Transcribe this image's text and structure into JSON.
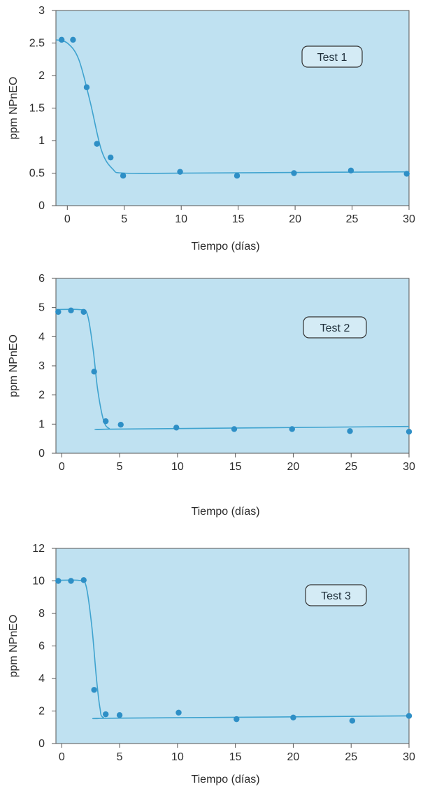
{
  "colors": {
    "plot_bg": "#bfe1f1",
    "frame": "#555555",
    "curve": "#3fa3cf",
    "point": "#2e8fc6",
    "badge_bg": "#d4ebf5",
    "badge_border": "#333333"
  },
  "chart_data": [
    {
      "type": "scatter",
      "title": "",
      "annotation": "Test 1",
      "annotation_placement": "top-right",
      "xlabel": "Tiempo (días)",
      "ylabel": "ppm NPnEO",
      "xlim": [
        -1,
        30
      ],
      "ylim": [
        0,
        3
      ],
      "xticks": [
        0,
        5,
        10,
        15,
        20,
        25,
        30
      ],
      "yticks": [
        0,
        0.5,
        1,
        1.5,
        2,
        2.5,
        3
      ],
      "ytick_labels": [
        "0",
        "0.5",
        "1",
        "1.5",
        "2",
        "2.5",
        "3"
      ],
      "grid": false,
      "points": [
        {
          "x": -0.5,
          "y": 2.55
        },
        {
          "x": 0.5,
          "y": 2.55
        },
        {
          "x": 1.7,
          "y": 1.82
        },
        {
          "x": 2.6,
          "y": 0.95
        },
        {
          "x": 3.8,
          "y": 0.74
        },
        {
          "x": 4.9,
          "y": 0.46
        },
        {
          "x": 9.9,
          "y": 0.52
        },
        {
          "x": 14.9,
          "y": 0.46
        },
        {
          "x": 19.9,
          "y": 0.5
        },
        {
          "x": 24.9,
          "y": 0.54
        },
        {
          "x": 29.8,
          "y": 0.49
        }
      ],
      "fit_curve": [
        {
          "x": -1,
          "y": 2.55
        },
        {
          "x": 0,
          "y": 2.5
        },
        {
          "x": 1,
          "y": 2.25
        },
        {
          "x": 2,
          "y": 1.6
        },
        {
          "x": 3,
          "y": 0.85
        },
        {
          "x": 4,
          "y": 0.56
        },
        {
          "x": 5,
          "y": 0.5
        },
        {
          "x": 10,
          "y": 0.5
        },
        {
          "x": 20,
          "y": 0.51
        },
        {
          "x": 30,
          "y": 0.52
        }
      ]
    },
    {
      "type": "scatter",
      "title": "",
      "annotation": "Test 2",
      "annotation_placement": "top-right",
      "xlabel": "Tiempo (días)",
      "ylabel": "ppm NPnEO",
      "xlim": [
        -0.5,
        30
      ],
      "ylim": [
        0,
        6
      ],
      "xticks": [
        0,
        5,
        10,
        15,
        20,
        25,
        30
      ],
      "yticks": [
        0,
        1,
        2,
        3,
        4,
        5,
        6
      ],
      "ytick_labels": [
        "0",
        "1",
        "2",
        "3",
        "4",
        "5",
        "6"
      ],
      "grid": false,
      "points": [
        {
          "x": -0.3,
          "y": 4.85
        },
        {
          "x": 0.8,
          "y": 4.9
        },
        {
          "x": 1.9,
          "y": 4.85
        },
        {
          "x": 2.8,
          "y": 2.8
        },
        {
          "x": 3.8,
          "y": 1.1
        },
        {
          "x": 5.1,
          "y": 0.98
        },
        {
          "x": 9.9,
          "y": 0.88
        },
        {
          "x": 14.9,
          "y": 0.83
        },
        {
          "x": 19.9,
          "y": 0.83
        },
        {
          "x": 24.9,
          "y": 0.76
        },
        {
          "x": 30,
          "y": 0.74
        }
      ],
      "fit_curve": [
        {
          "x": -0.5,
          "y": 4.93
        },
        {
          "x": 1.5,
          "y": 4.93
        },
        {
          "x": 2.2,
          "y": 4.78
        },
        {
          "x": 2.7,
          "y": 3.6
        },
        {
          "x": 3.1,
          "y": 2.2
        },
        {
          "x": 3.6,
          "y": 1.15
        },
        {
          "x": 4.1,
          "y": 0.85
        },
        {
          "x": 5,
          "y": 0.83
        },
        {
          "x": 30,
          "y": 0.92
        }
      ]
    },
    {
      "type": "scatter",
      "title": "",
      "annotation": "Test 3",
      "annotation_placement": "top-right",
      "xlabel": "Tiempo (días)",
      "ylabel": "ppm NPnEO",
      "xlim": [
        -0.5,
        30
      ],
      "ylim": [
        0,
        12
      ],
      "xticks": [
        0,
        5,
        10,
        15,
        20,
        25,
        30
      ],
      "yticks": [
        0,
        2,
        4,
        6,
        8,
        10,
        12
      ],
      "ytick_labels": [
        "0",
        "2",
        "4",
        "6",
        "8",
        "10",
        "12"
      ],
      "grid": false,
      "points": [
        {
          "x": -0.3,
          "y": 10
        },
        {
          "x": 0.8,
          "y": 10
        },
        {
          "x": 1.9,
          "y": 10.05
        },
        {
          "x": 2.8,
          "y": 3.3
        },
        {
          "x": 3.8,
          "y": 1.8
        },
        {
          "x": 5,
          "y": 1.75
        },
        {
          "x": 10.1,
          "y": 1.9
        },
        {
          "x": 15.1,
          "y": 1.5
        },
        {
          "x": 20,
          "y": 1.6
        },
        {
          "x": 25.1,
          "y": 1.4
        },
        {
          "x": 30,
          "y": 1.7
        }
      ],
      "fit_curve": [
        {
          "x": -0.5,
          "y": 10.03
        },
        {
          "x": 1.5,
          "y": 10.03
        },
        {
          "x": 2.1,
          "y": 9.7
        },
        {
          "x": 2.6,
          "y": 7.2
        },
        {
          "x": 3.0,
          "y": 4.0
        },
        {
          "x": 3.3,
          "y": 2.2
        },
        {
          "x": 3.6,
          "y": 1.6
        },
        {
          "x": 5,
          "y": 1.56
        },
        {
          "x": 30,
          "y": 1.7
        }
      ]
    }
  ]
}
